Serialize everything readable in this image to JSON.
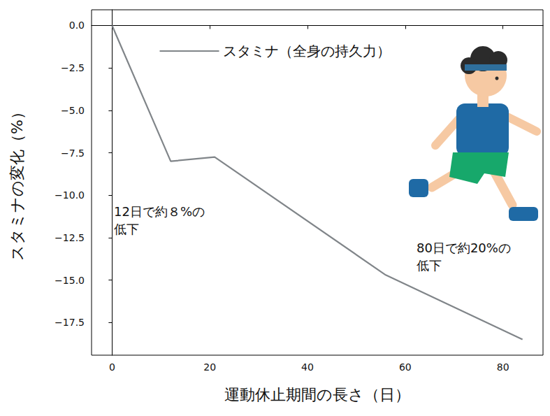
{
  "chart_data": {
    "type": "line",
    "x": [
      0,
      12,
      21,
      56,
      84
    ],
    "series": [
      {
        "name": "スタミナ（全身の持久力）",
        "color": "#808589",
        "values": [
          0,
          -8.0,
          -7.75,
          -14.7,
          -18.5
        ]
      }
    ],
    "xlabel": "運動休止期間の長さ（日）",
    "ylabel": "スタミナの変化（%）",
    "xlim": [
      -4.2,
      88.2
    ],
    "ylim": [
      -19.425,
      0.925
    ],
    "xticks": [
      0,
      20,
      40,
      60,
      80
    ],
    "yticks": [
      {
        "value": 0,
        "label": "0.0"
      },
      {
        "value": -2.5,
        "label": "−2.5"
      },
      {
        "value": -5,
        "label": "−5.0"
      },
      {
        "value": -7.5,
        "label": "−7.5"
      },
      {
        "value": -10,
        "label": "−10.0"
      },
      {
        "value": -12.5,
        "label": "−12.5"
      },
      {
        "value": -15,
        "label": "−15.0"
      },
      {
        "value": -17.5,
        "label": "−17.5"
      }
    ],
    "annotations": [
      "12日で約８%の\n低下",
      "80日で約20%の\n低下"
    ],
    "legend": "upper center",
    "grid": false
  }
}
